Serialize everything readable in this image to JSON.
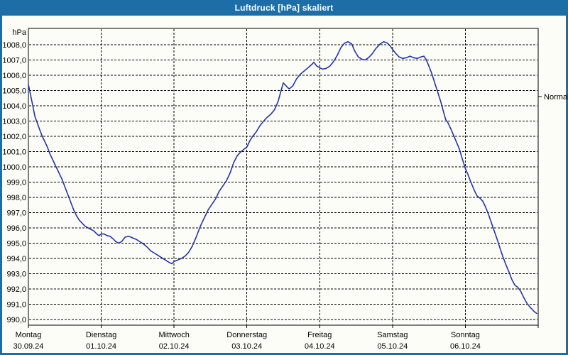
{
  "window": {
    "title": "Luftdruck [hPa] skaliert"
  },
  "theme": {
    "titlebar_bg": "#1d6ea7",
    "border_color": "#1d6ea7",
    "window_bg": "#fdfdf8",
    "line_color": "#2233aa",
    "grid_color": "#000000",
    "text_color": "#000000",
    "title_text_color": "#ffffff"
  },
  "chart_data": {
    "type": "line",
    "title": "Luftdruck [hPa] skaliert",
    "unit_label": "hPa",
    "ylabel": "hPa",
    "xlabel": "",
    "ylim": [
      990,
      1008
    ],
    "y_step": 1,
    "decimal_separator": ",",
    "grid": "dashed",
    "legend_position": "none",
    "normal_marker": {
      "label": "Normal",
      "value": 1004.6
    },
    "categories": [
      {
        "weekday": "Montag",
        "date": "30.09.24"
      },
      {
        "weekday": "Dienstag",
        "date": "01.10.24"
      },
      {
        "weekday": "Mittwoch",
        "date": "02.10.24"
      },
      {
        "weekday": "Donnerstag",
        "date": "03.10.24"
      },
      {
        "weekday": "Freitag",
        "date": "04.10.24"
      },
      {
        "weekday": "Samstag",
        "date": "05.10.24"
      },
      {
        "weekday": "Sonntag",
        "date": "06.10.24"
      }
    ],
    "x_days_span": 7,
    "series": [
      {
        "name": "Luftdruck",
        "color": "#2233aa",
        "x_unit": "days_since_monday_00h",
        "points": [
          [
            0.0,
            1005.4
          ],
          [
            0.03,
            1004.7
          ],
          [
            0.06,
            1004.0
          ],
          [
            0.09,
            1003.3
          ],
          [
            0.12,
            1002.9
          ],
          [
            0.15,
            1002.5
          ],
          [
            0.19,
            1002.0
          ],
          [
            0.22,
            1001.7
          ],
          [
            0.26,
            1001.3
          ],
          [
            0.3,
            1000.8
          ],
          [
            0.34,
            1000.4
          ],
          [
            0.38,
            1000.0
          ],
          [
            0.42,
            999.6
          ],
          [
            0.46,
            999.2
          ],
          [
            0.5,
            998.7
          ],
          [
            0.54,
            998.2
          ],
          [
            0.58,
            997.7
          ],
          [
            0.62,
            997.2
          ],
          [
            0.66,
            996.8
          ],
          [
            0.7,
            996.5
          ],
          [
            0.74,
            996.3
          ],
          [
            0.78,
            996.1
          ],
          [
            0.82,
            996.0
          ],
          [
            0.86,
            995.9
          ],
          [
            0.9,
            995.8
          ],
          [
            0.94,
            995.6
          ],
          [
            0.97,
            995.5
          ],
          [
            1.0,
            995.6
          ],
          [
            1.04,
            995.6
          ],
          [
            1.08,
            995.5
          ],
          [
            1.12,
            995.45
          ],
          [
            1.16,
            995.3
          ],
          [
            1.2,
            995.1
          ],
          [
            1.24,
            995.0
          ],
          [
            1.28,
            995.1
          ],
          [
            1.33,
            995.4
          ],
          [
            1.38,
            995.45
          ],
          [
            1.43,
            995.35
          ],
          [
            1.48,
            995.25
          ],
          [
            1.53,
            995.1
          ],
          [
            1.58,
            994.95
          ],
          [
            1.63,
            994.75
          ],
          [
            1.68,
            994.5
          ],
          [
            1.73,
            994.35
          ],
          [
            1.78,
            994.2
          ],
          [
            1.83,
            994.05
          ],
          [
            1.88,
            993.9
          ],
          [
            1.93,
            993.75
          ],
          [
            1.97,
            993.65
          ],
          [
            2.0,
            993.8
          ],
          [
            2.05,
            993.9
          ],
          [
            2.1,
            994.0
          ],
          [
            2.15,
            994.15
          ],
          [
            2.2,
            994.4
          ],
          [
            2.25,
            994.8
          ],
          [
            2.3,
            995.35
          ],
          [
            2.36,
            996.1
          ],
          [
            2.42,
            996.7
          ],
          [
            2.47,
            997.2
          ],
          [
            2.52,
            997.55
          ],
          [
            2.57,
            997.9
          ],
          [
            2.62,
            998.4
          ],
          [
            2.67,
            998.75
          ],
          [
            2.72,
            999.1
          ],
          [
            2.77,
            999.6
          ],
          [
            2.82,
            1000.3
          ],
          [
            2.87,
            1000.75
          ],
          [
            2.92,
            1001.0
          ],
          [
            2.96,
            1001.15
          ],
          [
            3.0,
            1001.3
          ],
          [
            3.04,
            1001.7
          ],
          [
            3.08,
            1002.0
          ],
          [
            3.13,
            1002.3
          ],
          [
            3.18,
            1002.7
          ],
          [
            3.23,
            1003.0
          ],
          [
            3.28,
            1003.25
          ],
          [
            3.33,
            1003.45
          ],
          [
            3.38,
            1003.75
          ],
          [
            3.43,
            1004.3
          ],
          [
            3.47,
            1005.0
          ],
          [
            3.5,
            1005.5
          ],
          [
            3.54,
            1005.3
          ],
          [
            3.58,
            1005.1
          ],
          [
            3.63,
            1005.3
          ],
          [
            3.68,
            1005.75
          ],
          [
            3.73,
            1006.05
          ],
          [
            3.78,
            1006.25
          ],
          [
            3.83,
            1006.45
          ],
          [
            3.89,
            1006.7
          ],
          [
            3.92,
            1006.85
          ],
          [
            3.96,
            1006.6
          ],
          [
            4.0,
            1006.5
          ],
          [
            4.04,
            1006.4
          ],
          [
            4.09,
            1006.45
          ],
          [
            4.14,
            1006.6
          ],
          [
            4.19,
            1006.9
          ],
          [
            4.24,
            1007.3
          ],
          [
            4.29,
            1007.8
          ],
          [
            4.34,
            1008.1
          ],
          [
            4.39,
            1008.2
          ],
          [
            4.44,
            1008.05
          ],
          [
            4.48,
            1007.6
          ],
          [
            4.53,
            1007.2
          ],
          [
            4.58,
            1007.05
          ],
          [
            4.62,
            1007.0
          ],
          [
            4.67,
            1007.15
          ],
          [
            4.72,
            1007.4
          ],
          [
            4.77,
            1007.75
          ],
          [
            4.83,
            1008.05
          ],
          [
            4.88,
            1008.2
          ],
          [
            4.93,
            1008.1
          ],
          [
            4.97,
            1007.9
          ],
          [
            5.0,
            1007.7
          ],
          [
            5.04,
            1007.45
          ],
          [
            5.09,
            1007.2
          ],
          [
            5.14,
            1007.1
          ],
          [
            5.19,
            1007.15
          ],
          [
            5.24,
            1007.25
          ],
          [
            5.29,
            1007.15
          ],
          [
            5.34,
            1007.1
          ],
          [
            5.39,
            1007.2
          ],
          [
            5.43,
            1007.25
          ],
          [
            5.46,
            1007.05
          ],
          [
            5.5,
            1006.6
          ],
          [
            5.54,
            1006.1
          ],
          [
            5.58,
            1005.5
          ],
          [
            5.62,
            1004.9
          ],
          [
            5.66,
            1004.3
          ],
          [
            5.7,
            1003.6
          ],
          [
            5.73,
            1003.1
          ],
          [
            5.76,
            1002.9
          ],
          [
            5.8,
            1002.5
          ],
          [
            5.84,
            1002.05
          ],
          [
            5.88,
            1001.6
          ],
          [
            5.92,
            1001.15
          ],
          [
            5.96,
            1000.5
          ],
          [
            6.0,
            999.9
          ],
          [
            6.04,
            999.45
          ],
          [
            6.08,
            998.95
          ],
          [
            6.12,
            998.5
          ],
          [
            6.16,
            998.1
          ],
          [
            6.2,
            997.95
          ],
          [
            6.24,
            997.75
          ],
          [
            6.28,
            997.35
          ],
          [
            6.32,
            996.85
          ],
          [
            6.36,
            996.3
          ],
          [
            6.4,
            995.75
          ],
          [
            6.44,
            995.2
          ],
          [
            6.48,
            994.6
          ],
          [
            6.52,
            994.05
          ],
          [
            6.56,
            993.55
          ],
          [
            6.6,
            993.1
          ],
          [
            6.64,
            992.6
          ],
          [
            6.68,
            992.25
          ],
          [
            6.72,
            992.1
          ],
          [
            6.76,
            991.85
          ],
          [
            6.8,
            991.45
          ],
          [
            6.84,
            991.1
          ],
          [
            6.88,
            990.85
          ],
          [
            6.92,
            990.65
          ],
          [
            6.95,
            990.5
          ],
          [
            6.98,
            990.4
          ]
        ]
      }
    ]
  }
}
